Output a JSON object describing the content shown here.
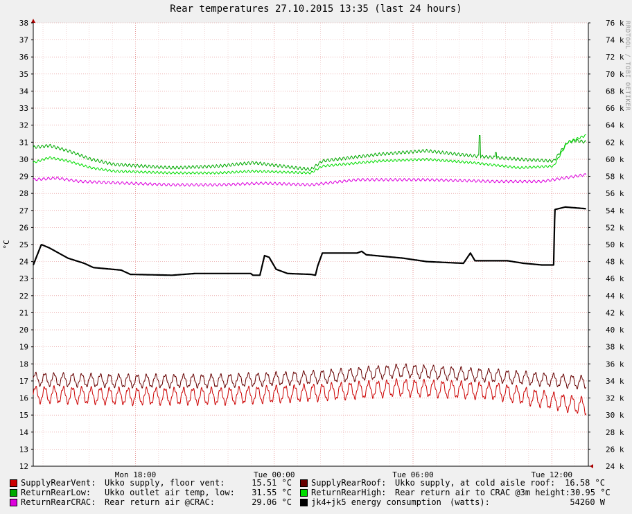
{
  "chart_data": {
    "type": "line",
    "title": "Rear temperatures 27.10.2015 13:35 (last 24 hours)",
    "ylabel": "°C",
    "watermark": "RRDTOOL / TOBI OETIKER",
    "ylim": [
      12,
      38
    ],
    "y_ticks": [
      12,
      13,
      14,
      15,
      16,
      17,
      18,
      19,
      20,
      21,
      22,
      23,
      24,
      25,
      26,
      27,
      28,
      29,
      30,
      31,
      32,
      33,
      34,
      35,
      36,
      37,
      38
    ],
    "y2_ticks": [
      "24 k",
      "26 k",
      "28 k",
      "30 k",
      "32 k",
      "34 k",
      "36 k",
      "38 k",
      "40 k",
      "42 k",
      "44 k",
      "46 k",
      "48 k",
      "50 k",
      "52 k",
      "54 k",
      "56 k",
      "58 k",
      "60 k",
      "62 k",
      "64 k",
      "66 k",
      "68 k",
      "70 k",
      "72 k",
      "74 k",
      "76 k"
    ],
    "x_ticks": [
      {
        "label": "Mon 18:00",
        "hour": 4.42
      },
      {
        "label": "Tue 00:00",
        "hour": 10.42
      },
      {
        "label": "Tue 06:00",
        "hour": 16.42
      },
      {
        "label": "Tue 12:00",
        "hour": 22.42
      }
    ],
    "x_range_hours": [
      0,
      24
    ],
    "grid": true,
    "legend_placement": "bottom",
    "series": [
      {
        "name": "SupplyRearVent",
        "key": "supply_vent",
        "color": "#cc0000",
        "points": [
          [
            0,
            16.2
          ],
          [
            4,
            16.1
          ],
          [
            8,
            16.1
          ],
          [
            12,
            16.3
          ],
          [
            16,
            16.6
          ],
          [
            20,
            16.4
          ],
          [
            23.9,
            15.5
          ]
        ],
        "oscillation": 0.45,
        "cycles": 60
      },
      {
        "name": "SupplyRearRoof",
        "key": "supply_roof",
        "color": "#660000",
        "points": [
          [
            0,
            17.1
          ],
          [
            4,
            17.0
          ],
          [
            8,
            17.0
          ],
          [
            12,
            17.2
          ],
          [
            16,
            17.6
          ],
          [
            20,
            17.3
          ],
          [
            23.9,
            16.9
          ]
        ],
        "oscillation": 0.35,
        "cycles": 60
      },
      {
        "name": "ReturnRearLow",
        "key": "return_low",
        "color": "#00aa00",
        "points": [
          [
            0,
            30.7
          ],
          [
            0.7,
            30.8
          ],
          [
            1.5,
            30.5
          ],
          [
            2.5,
            30.0
          ],
          [
            3.5,
            29.7
          ],
          [
            6,
            29.5
          ],
          [
            8,
            29.6
          ],
          [
            9.5,
            29.8
          ],
          [
            12,
            29.4
          ],
          [
            12.5,
            29.9
          ],
          [
            15,
            30.3
          ],
          [
            17,
            30.5
          ],
          [
            19,
            30.2
          ],
          [
            21,
            30.0
          ],
          [
            22.5,
            29.9
          ],
          [
            23.1,
            31.0
          ],
          [
            23.5,
            31.1
          ],
          [
            23.9,
            31.0
          ]
        ],
        "oscillation": 0.08,
        "cycles": 140,
        "spikes": [
          [
            19.3,
            31.4
          ],
          [
            20.0,
            30.4
          ]
        ]
      },
      {
        "name": "ReturnRearHigh",
        "key": "return_high",
        "color": "#00dd00",
        "points": [
          [
            0,
            29.8
          ],
          [
            0.7,
            30.1
          ],
          [
            1.5,
            29.9
          ],
          [
            2.5,
            29.5
          ],
          [
            3.5,
            29.3
          ],
          [
            6,
            29.2
          ],
          [
            8,
            29.2
          ],
          [
            9.5,
            29.3
          ],
          [
            12,
            29.2
          ],
          [
            12.5,
            29.6
          ],
          [
            15,
            29.9
          ],
          [
            17,
            30.0
          ],
          [
            19,
            29.8
          ],
          [
            21,
            29.5
          ],
          [
            22.5,
            29.6
          ],
          [
            23.1,
            31.0
          ],
          [
            23.5,
            31.2
          ],
          [
            23.9,
            31.4
          ]
        ],
        "oscillation": 0.06,
        "cycles": 140
      },
      {
        "name": "ReturnRearCRAC",
        "key": "return_crac",
        "color": "#dd00dd",
        "points": [
          [
            0,
            28.8
          ],
          [
            1,
            28.9
          ],
          [
            2,
            28.7
          ],
          [
            4,
            28.6
          ],
          [
            6,
            28.5
          ],
          [
            8,
            28.5
          ],
          [
            10,
            28.6
          ],
          [
            12,
            28.5
          ],
          [
            14,
            28.8
          ],
          [
            17,
            28.8
          ],
          [
            20,
            28.7
          ],
          [
            22,
            28.7
          ],
          [
            23.9,
            29.1
          ]
        ],
        "oscillation": 0.07,
        "cycles": 120
      },
      {
        "name": "jk4+jk5 energy consumption (watts)",
        "key": "energy",
        "color": "#000000",
        "unit": "W",
        "points": [
          [
            0,
            47.6
          ],
          [
            0.35,
            50.0
          ],
          [
            0.7,
            49.6
          ],
          [
            1.5,
            48.4
          ],
          [
            2.2,
            47.8
          ],
          [
            2.6,
            47.3
          ],
          [
            3.8,
            47.0
          ],
          [
            4.2,
            46.5
          ],
          [
            6,
            46.4
          ],
          [
            7,
            46.6
          ],
          [
            8,
            46.6
          ],
          [
            9.4,
            46.6
          ],
          [
            9.5,
            46.4
          ],
          [
            9.8,
            46.4
          ],
          [
            10,
            48.7
          ],
          [
            10.2,
            48.5
          ],
          [
            10.5,
            47.1
          ],
          [
            11,
            46.6
          ],
          [
            12,
            46.5
          ],
          [
            12.2,
            46.4
          ],
          [
            12.3,
            47.5
          ],
          [
            12.5,
            49.0
          ],
          [
            14,
            49.0
          ],
          [
            14.2,
            49.2
          ],
          [
            14.4,
            48.8
          ],
          [
            16,
            48.4
          ],
          [
            17,
            48.0
          ],
          [
            18.6,
            47.8
          ],
          [
            18.9,
            49.0
          ],
          [
            19.1,
            48.1
          ],
          [
            20.5,
            48.1
          ],
          [
            21.2,
            47.8
          ],
          [
            22,
            47.6
          ],
          [
            22.5,
            47.6
          ],
          [
            22.55,
            54.1
          ],
          [
            23,
            54.4
          ],
          [
            23.9,
            54.2
          ]
        ],
        "oscillation": 0.0,
        "cycles": 0
      }
    ]
  },
  "legend": [
    {
      "name": "SupplyRearVent:",
      "desc": "Ukko supply, floor vent:",
      "value": "15.51 °C",
      "color": "#cc0000"
    },
    {
      "name": "SupplyRearRoof:",
      "desc": "Ukko supply, at cold aisle roof:",
      "value": "16.58 °C",
      "color": "#660000"
    },
    {
      "name": "ReturnRearLow:",
      "desc": "Ukko outlet air temp, low:",
      "value": "31.55 °C",
      "color": "#00aa00"
    },
    {
      "name": "ReturnRearHigh:",
      "desc": "Rear return air to CRAC @3m height:",
      "value": "30.95 °C",
      "color": "#00dd00"
    },
    {
      "name": "ReturnRearCRAC:",
      "desc": "Rear return air @CRAC:",
      "value": "29.06 °C",
      "color": "#dd00dd"
    },
    {
      "name": "jk4+jk5 energy consumption",
      "desc": "(watts):",
      "value": "54260 W",
      "color": "#000000"
    }
  ]
}
